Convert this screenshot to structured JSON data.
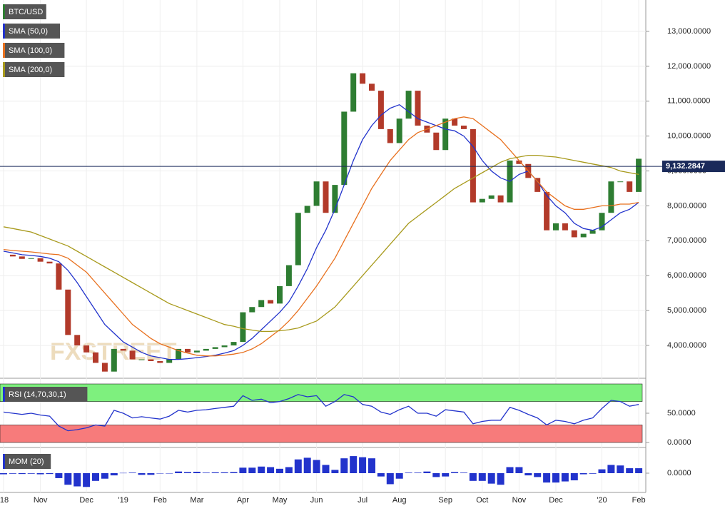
{
  "chart_data": [
    {
      "type": "candlestick",
      "categories": [
        "'18",
        null,
        null,
        null,
        "Nov",
        null,
        null,
        null,
        null,
        "Dec",
        null,
        null,
        null,
        "'19",
        null,
        null,
        null,
        "Feb",
        null,
        null,
        null,
        "Mar",
        null,
        null,
        null,
        null,
        "Apr",
        null,
        null,
        null,
        "May",
        null,
        null,
        null,
        "Jun",
        null,
        null,
        null,
        null,
        "Jul",
        null,
        null,
        null,
        "Aug",
        null,
        null,
        null,
        null,
        "Sep",
        null,
        null,
        null,
        "Oct",
        null,
        null,
        null,
        "Nov",
        null,
        null,
        null,
        "Dec",
        null,
        null,
        null,
        null,
        "'20",
        null,
        null,
        null,
        "Feb"
      ],
      "series": [
        {
          "name": "BTC/USD",
          "color": "#2e7d32",
          "down_color": "#b23a2a",
          "values": [
            6600,
            6550,
            6480,
            6500,
            6400,
            6350,
            5600,
            4300,
            4000,
            3800,
            3500,
            3250,
            3900,
            3850,
            3600,
            3600,
            3550,
            3500,
            3600,
            3900,
            3800,
            3850,
            3900,
            3950,
            4000,
            4100,
            4950,
            5100,
            5300,
            5200,
            5700,
            6300,
            7800,
            8000,
            8700,
            7800,
            8600,
            10700,
            11800,
            11500,
            11300,
            10200,
            9800,
            10500,
            11300,
            10300,
            10100,
            9600,
            10500,
            10300,
            10200,
            8100,
            8200,
            8300,
            8100,
            9300,
            9200,
            8800,
            8400,
            7300,
            7500,
            7300,
            7100,
            7200,
            7300,
            7800,
            8700,
            8700,
            8400,
            9350
          ]
        },
        {
          "name": "SMA (50,0)",
          "color": "#2233cc",
          "values": [
            6700,
            6650,
            6600,
            6580,
            6550,
            6500,
            6400,
            6150,
            5800,
            5400,
            5000,
            4600,
            4350,
            4100,
            3950,
            3800,
            3700,
            3650,
            3600,
            3600,
            3620,
            3650,
            3680,
            3720,
            3780,
            3850,
            4000,
            4200,
            4450,
            4700,
            4950,
            5250,
            5700,
            6200,
            6800,
            7300,
            7900,
            8600,
            9300,
            9900,
            10300,
            10600,
            10800,
            10900,
            10700,
            10500,
            10400,
            10300,
            10200,
            10150,
            10000,
            9700,
            9300,
            9000,
            8800,
            8700,
            8900,
            9000,
            8700,
            8300,
            8000,
            7800,
            7500,
            7350,
            7300,
            7400,
            7600,
            7800,
            7900,
            8100
          ]
        },
        {
          "name": "SMA (100,0)",
          "color": "#e8701e",
          "values": [
            6750,
            6720,
            6700,
            6680,
            6650,
            6620,
            6600,
            6500,
            6300,
            6100,
            5800,
            5500,
            5200,
            4900,
            4600,
            4400,
            4200,
            4050,
            3950,
            3850,
            3780,
            3720,
            3700,
            3700,
            3720,
            3750,
            3800,
            3900,
            4050,
            4250,
            4450,
            4700,
            5000,
            5350,
            5700,
            6100,
            6500,
            7000,
            7500,
            8000,
            8500,
            8900,
            9300,
            9600,
            9900,
            10100,
            10200,
            10300,
            10400,
            10500,
            10550,
            10500,
            10300,
            10100,
            9900,
            9600,
            9300,
            9000,
            8700,
            8400,
            8200,
            8000,
            7900,
            7900,
            7950,
            8000,
            8000,
            8050,
            8050,
            8100
          ]
        },
        {
          "name": "SMA (200,0)",
          "color": "#a89a1c",
          "values": [
            7400,
            7350,
            7300,
            7250,
            7150,
            7050,
            6950,
            6850,
            6700,
            6550,
            6400,
            6250,
            6100,
            5950,
            5800,
            5650,
            5500,
            5350,
            5200,
            5100,
            5000,
            4900,
            4800,
            4700,
            4600,
            4550,
            4480,
            4440,
            4400,
            4400,
            4420,
            4450,
            4500,
            4600,
            4700,
            4900,
            5100,
            5400,
            5700,
            6000,
            6300,
            6600,
            6900,
            7200,
            7500,
            7700,
            7900,
            8100,
            8300,
            8500,
            8650,
            8800,
            8950,
            9100,
            9250,
            9350,
            9400,
            9450,
            9450,
            9420,
            9400,
            9350,
            9300,
            9250,
            9200,
            9150,
            9100,
            9000,
            8950,
            8900
          ]
        }
      ],
      "last_price": {
        "value": 9132.2847,
        "label": "9,132.2847"
      },
      "ylim": [
        3100,
        13900
      ],
      "yticks": [
        {
          "value": 4000,
          "label": "4,000.0000"
        },
        {
          "value": 5000,
          "label": "5,000.0000"
        },
        {
          "value": 6000,
          "label": "6,000.0000"
        },
        {
          "value": 7000,
          "label": "7,000.0000"
        },
        {
          "value": 8000,
          "label": "8,000.0000"
        },
        {
          "value": 9000,
          "label": "9,000.0000"
        },
        {
          "value": 10000,
          "label": "10,000.0000"
        },
        {
          "value": 11000,
          "label": "11,000.0000"
        },
        {
          "value": 12000,
          "label": "12,000.0000"
        },
        {
          "value": 13000,
          "label": "13,000.0000"
        }
      ],
      "grid": true,
      "watermark": "FXSTREET"
    },
    {
      "type": "line",
      "series": [
        {
          "name": "RSI (14,70,30,1)",
          "color": "#2233cc",
          "values": [
            52,
            50,
            48,
            50,
            47,
            45,
            28,
            20,
            22,
            25,
            30,
            28,
            55,
            50,
            42,
            44,
            42,
            40,
            45,
            55,
            52,
            55,
            56,
            58,
            60,
            62,
            80,
            72,
            74,
            68,
            70,
            75,
            82,
            78,
            80,
            62,
            70,
            82,
            78,
            65,
            62,
            52,
            48,
            56,
            62,
            50,
            50,
            45,
            56,
            54,
            52,
            32,
            36,
            38,
            38,
            60,
            55,
            48,
            42,
            30,
            38,
            36,
            32,
            38,
            42,
            58,
            72,
            70,
            62,
            65
          ]
        }
      ],
      "bands": [
        {
          "range": [
            70,
            100
          ],
          "color": "#7ef07e"
        },
        {
          "range": [
            0,
            30
          ],
          "color": "#f77b7b"
        }
      ],
      "ylim": [
        0,
        100
      ],
      "yticks": [
        {
          "value": 0,
          "label": "0.0000"
        },
        {
          "value": 50,
          "label": "50.0000"
        }
      ]
    },
    {
      "type": "bar",
      "series": [
        {
          "name": "MOM (20)",
          "color": "#2233cc",
          "values": [
            -200,
            -100,
            -150,
            -100,
            -200,
            -150,
            -900,
            -2100,
            -2400,
            -2500,
            -1400,
            -1000,
            -400,
            50,
            100,
            -300,
            -300,
            -50,
            0,
            300,
            200,
            250,
            100,
            150,
            150,
            200,
            1000,
            1000,
            1200,
            1100,
            800,
            1100,
            2500,
            2800,
            2400,
            1500,
            600,
            2700,
            3100,
            2900,
            2700,
            -600,
            -2000,
            -1000,
            100,
            100,
            300,
            -700,
            -600,
            200,
            100,
            -1400,
            -1400,
            -1900,
            -2100,
            1100,
            1100,
            -400,
            -700,
            -1700,
            -1700,
            -1500,
            -1300,
            -200,
            -100,
            700,
            1500,
            1400,
            900,
            900
          ]
        }
      ],
      "ylim": [
        -3500,
        3500
      ],
      "yticks": [
        {
          "value": 0,
          "label": "0.0000"
        }
      ]
    }
  ]
}
